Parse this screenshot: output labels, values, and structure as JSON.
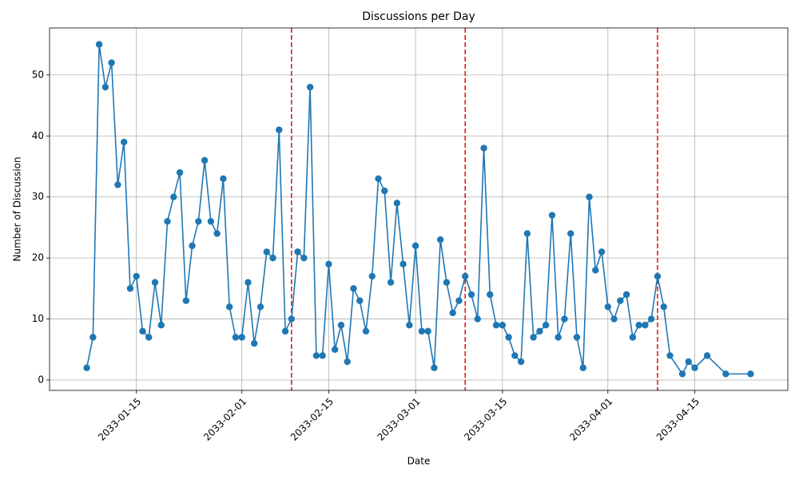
{
  "chart_data": {
    "type": "line",
    "title": "Discussions per Day",
    "x_label": "Date",
    "y_label": "Number of Discussion",
    "x": [
      "2033-01-07",
      "2033-01-08",
      "2033-01-09",
      "2033-01-10",
      "2033-01-11",
      "2033-01-12",
      "2033-01-13",
      "2033-01-14",
      "2033-01-15",
      "2033-01-16",
      "2033-01-17",
      "2033-01-18",
      "2033-01-19",
      "2033-01-20",
      "2033-01-21",
      "2033-01-22",
      "2033-01-23",
      "2033-01-24",
      "2033-01-25",
      "2033-01-26",
      "2033-01-27",
      "2033-01-28",
      "2033-01-29",
      "2033-01-30",
      "2033-01-31",
      "2033-02-01",
      "2033-02-02",
      "2033-02-03",
      "2033-02-04",
      "2033-02-05",
      "2033-02-06",
      "2033-02-07",
      "2033-02-08",
      "2033-02-09",
      "2033-02-10",
      "2033-02-11",
      "2033-02-12",
      "2033-02-13",
      "2033-02-14",
      "2033-02-15",
      "2033-02-16",
      "2033-02-17",
      "2033-02-18",
      "2033-02-19",
      "2033-02-20",
      "2033-02-21",
      "2033-02-22",
      "2033-02-23",
      "2033-02-24",
      "2033-02-25",
      "2033-02-26",
      "2033-02-27",
      "2033-02-28",
      "2033-03-01",
      "2033-03-02",
      "2033-03-03",
      "2033-03-04",
      "2033-03-05",
      "2033-03-06",
      "2033-03-07",
      "2033-03-08",
      "2033-03-09",
      "2033-03-10",
      "2033-03-11",
      "2033-03-12",
      "2033-03-13",
      "2033-03-14",
      "2033-03-15",
      "2033-03-16",
      "2033-03-17",
      "2033-03-18",
      "2033-03-19",
      "2033-03-20",
      "2033-03-21",
      "2033-03-22",
      "2033-03-23",
      "2033-03-24",
      "2033-03-25",
      "2033-03-26",
      "2033-03-27",
      "2033-03-28",
      "2033-03-29",
      "2033-03-30",
      "2033-03-31",
      "2033-04-01",
      "2033-04-02",
      "2033-04-03",
      "2033-04-04",
      "2033-04-05",
      "2033-04-06",
      "2033-04-07",
      "2033-04-08",
      "2033-04-09",
      "2033-04-10",
      "2033-04-11",
      "2033-04-13",
      "2033-04-14",
      "2033-04-15",
      "2033-04-17",
      "2033-04-20",
      "2033-04-24"
    ],
    "series": [
      {
        "name": "Discussions",
        "color": "#1f77b4",
        "values": [
          2,
          7,
          55,
          48,
          52,
          32,
          39,
          15,
          17,
          8,
          7,
          16,
          9,
          26,
          30,
          34,
          13,
          22,
          26,
          36,
          26,
          24,
          33,
          12,
          7,
          7,
          16,
          6,
          12,
          21,
          20,
          41,
          8,
          10,
          21,
          20,
          48,
          4,
          4,
          19,
          5,
          9,
          3,
          15,
          13,
          8,
          17,
          33,
          31,
          16,
          29,
          19,
          9,
          22,
          8,
          8,
          2,
          23,
          16,
          11,
          13,
          17,
          14,
          10,
          38,
          14,
          9,
          9,
          7,
          4,
          3,
          24,
          7,
          8,
          9,
          27,
          7,
          10,
          24,
          7,
          2,
          30,
          18,
          21,
          12,
          10,
          13,
          14,
          7,
          9,
          9,
          10,
          17,
          12,
          4,
          1,
          3,
          2,
          4,
          1,
          1
        ]
      }
    ],
    "vlines": [
      "2033-02-09",
      "2033-03-09",
      "2033-04-09"
    ],
    "vline_color": "#e41a1c",
    "xlim": [
      "2033-01-01",
      "2033-04-30"
    ],
    "xticks": [
      "2033-01-15",
      "2033-02-01",
      "2033-02-15",
      "2033-03-01",
      "2033-03-15",
      "2033-04-01",
      "2033-04-15"
    ],
    "ylim": [
      -1.7,
      57.7
    ],
    "yticks": [
      0,
      10,
      20,
      30,
      40,
      50
    ],
    "grid": true
  }
}
